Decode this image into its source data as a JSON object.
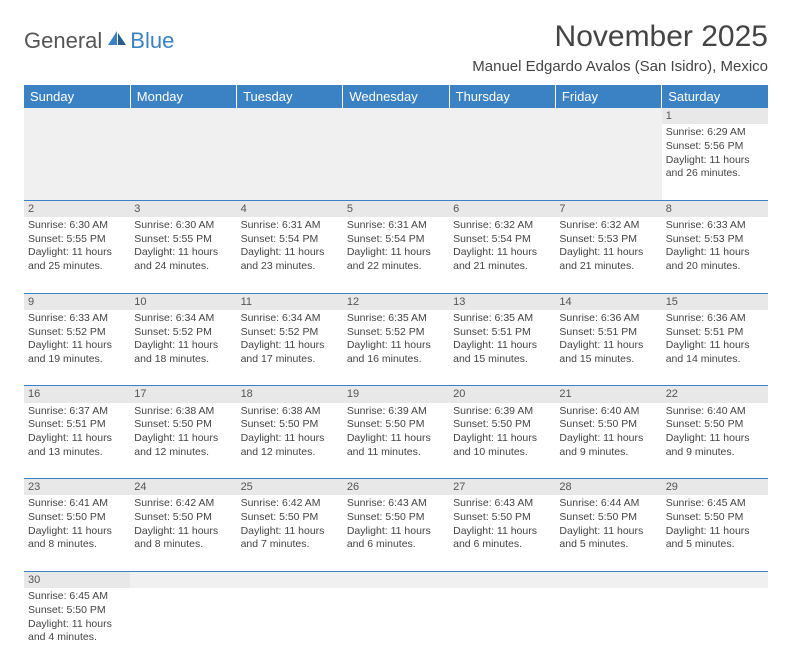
{
  "logo": {
    "part1": "General",
    "part2": "Blue"
  },
  "title": "November 2025",
  "location": "Manuel Edgardo Avalos (San Isidro), Mexico",
  "headers": [
    "Sunday",
    "Monday",
    "Tuesday",
    "Wednesday",
    "Thursday",
    "Friday",
    "Saturday"
  ],
  "colors": {
    "header_bg": "#3b82c4",
    "header_fg": "#ffffff",
    "daynum_bg": "#e8e8e8",
    "text": "#444444",
    "rule": "#3b82c4"
  },
  "typography": {
    "title_fontsize": 30,
    "location_fontsize": 15,
    "header_fontsize": 13,
    "cell_fontsize": 10.5,
    "daynum_fontsize": 11
  },
  "weeks": [
    [
      null,
      null,
      null,
      null,
      null,
      null,
      {
        "n": "1",
        "sr": "Sunrise: 6:29 AM",
        "ss": "Sunset: 5:56 PM",
        "d1": "Daylight: 11 hours",
        "d2": "and 26 minutes."
      }
    ],
    [
      {
        "n": "2",
        "sr": "Sunrise: 6:30 AM",
        "ss": "Sunset: 5:55 PM",
        "d1": "Daylight: 11 hours",
        "d2": "and 25 minutes."
      },
      {
        "n": "3",
        "sr": "Sunrise: 6:30 AM",
        "ss": "Sunset: 5:55 PM",
        "d1": "Daylight: 11 hours",
        "d2": "and 24 minutes."
      },
      {
        "n": "4",
        "sr": "Sunrise: 6:31 AM",
        "ss": "Sunset: 5:54 PM",
        "d1": "Daylight: 11 hours",
        "d2": "and 23 minutes."
      },
      {
        "n": "5",
        "sr": "Sunrise: 6:31 AM",
        "ss": "Sunset: 5:54 PM",
        "d1": "Daylight: 11 hours",
        "d2": "and 22 minutes."
      },
      {
        "n": "6",
        "sr": "Sunrise: 6:32 AM",
        "ss": "Sunset: 5:54 PM",
        "d1": "Daylight: 11 hours",
        "d2": "and 21 minutes."
      },
      {
        "n": "7",
        "sr": "Sunrise: 6:32 AM",
        "ss": "Sunset: 5:53 PM",
        "d1": "Daylight: 11 hours",
        "d2": "and 21 minutes."
      },
      {
        "n": "8",
        "sr": "Sunrise: 6:33 AM",
        "ss": "Sunset: 5:53 PM",
        "d1": "Daylight: 11 hours",
        "d2": "and 20 minutes."
      }
    ],
    [
      {
        "n": "9",
        "sr": "Sunrise: 6:33 AM",
        "ss": "Sunset: 5:52 PM",
        "d1": "Daylight: 11 hours",
        "d2": "and 19 minutes."
      },
      {
        "n": "10",
        "sr": "Sunrise: 6:34 AM",
        "ss": "Sunset: 5:52 PM",
        "d1": "Daylight: 11 hours",
        "d2": "and 18 minutes."
      },
      {
        "n": "11",
        "sr": "Sunrise: 6:34 AM",
        "ss": "Sunset: 5:52 PM",
        "d1": "Daylight: 11 hours",
        "d2": "and 17 minutes."
      },
      {
        "n": "12",
        "sr": "Sunrise: 6:35 AM",
        "ss": "Sunset: 5:52 PM",
        "d1": "Daylight: 11 hours",
        "d2": "and 16 minutes."
      },
      {
        "n": "13",
        "sr": "Sunrise: 6:35 AM",
        "ss": "Sunset: 5:51 PM",
        "d1": "Daylight: 11 hours",
        "d2": "and 15 minutes."
      },
      {
        "n": "14",
        "sr": "Sunrise: 6:36 AM",
        "ss": "Sunset: 5:51 PM",
        "d1": "Daylight: 11 hours",
        "d2": "and 15 minutes."
      },
      {
        "n": "15",
        "sr": "Sunrise: 6:36 AM",
        "ss": "Sunset: 5:51 PM",
        "d1": "Daylight: 11 hours",
        "d2": "and 14 minutes."
      }
    ],
    [
      {
        "n": "16",
        "sr": "Sunrise: 6:37 AM",
        "ss": "Sunset: 5:51 PM",
        "d1": "Daylight: 11 hours",
        "d2": "and 13 minutes."
      },
      {
        "n": "17",
        "sr": "Sunrise: 6:38 AM",
        "ss": "Sunset: 5:50 PM",
        "d1": "Daylight: 11 hours",
        "d2": "and 12 minutes."
      },
      {
        "n": "18",
        "sr": "Sunrise: 6:38 AM",
        "ss": "Sunset: 5:50 PM",
        "d1": "Daylight: 11 hours",
        "d2": "and 12 minutes."
      },
      {
        "n": "19",
        "sr": "Sunrise: 6:39 AM",
        "ss": "Sunset: 5:50 PM",
        "d1": "Daylight: 11 hours",
        "d2": "and 11 minutes."
      },
      {
        "n": "20",
        "sr": "Sunrise: 6:39 AM",
        "ss": "Sunset: 5:50 PM",
        "d1": "Daylight: 11 hours",
        "d2": "and 10 minutes."
      },
      {
        "n": "21",
        "sr": "Sunrise: 6:40 AM",
        "ss": "Sunset: 5:50 PM",
        "d1": "Daylight: 11 hours",
        "d2": "and 9 minutes."
      },
      {
        "n": "22",
        "sr": "Sunrise: 6:40 AM",
        "ss": "Sunset: 5:50 PM",
        "d1": "Daylight: 11 hours",
        "d2": "and 9 minutes."
      }
    ],
    [
      {
        "n": "23",
        "sr": "Sunrise: 6:41 AM",
        "ss": "Sunset: 5:50 PM",
        "d1": "Daylight: 11 hours",
        "d2": "and 8 minutes."
      },
      {
        "n": "24",
        "sr": "Sunrise: 6:42 AM",
        "ss": "Sunset: 5:50 PM",
        "d1": "Daylight: 11 hours",
        "d2": "and 8 minutes."
      },
      {
        "n": "25",
        "sr": "Sunrise: 6:42 AM",
        "ss": "Sunset: 5:50 PM",
        "d1": "Daylight: 11 hours",
        "d2": "and 7 minutes."
      },
      {
        "n": "26",
        "sr": "Sunrise: 6:43 AM",
        "ss": "Sunset: 5:50 PM",
        "d1": "Daylight: 11 hours",
        "d2": "and 6 minutes."
      },
      {
        "n": "27",
        "sr": "Sunrise: 6:43 AM",
        "ss": "Sunset: 5:50 PM",
        "d1": "Daylight: 11 hours",
        "d2": "and 6 minutes."
      },
      {
        "n": "28",
        "sr": "Sunrise: 6:44 AM",
        "ss": "Sunset: 5:50 PM",
        "d1": "Daylight: 11 hours",
        "d2": "and 5 minutes."
      },
      {
        "n": "29",
        "sr": "Sunrise: 6:45 AM",
        "ss": "Sunset: 5:50 PM",
        "d1": "Daylight: 11 hours",
        "d2": "and 5 minutes."
      }
    ],
    [
      {
        "n": "30",
        "sr": "Sunrise: 6:45 AM",
        "ss": "Sunset: 5:50 PM",
        "d1": "Daylight: 11 hours",
        "d2": "and 4 minutes."
      },
      null,
      null,
      null,
      null,
      null,
      null
    ]
  ]
}
